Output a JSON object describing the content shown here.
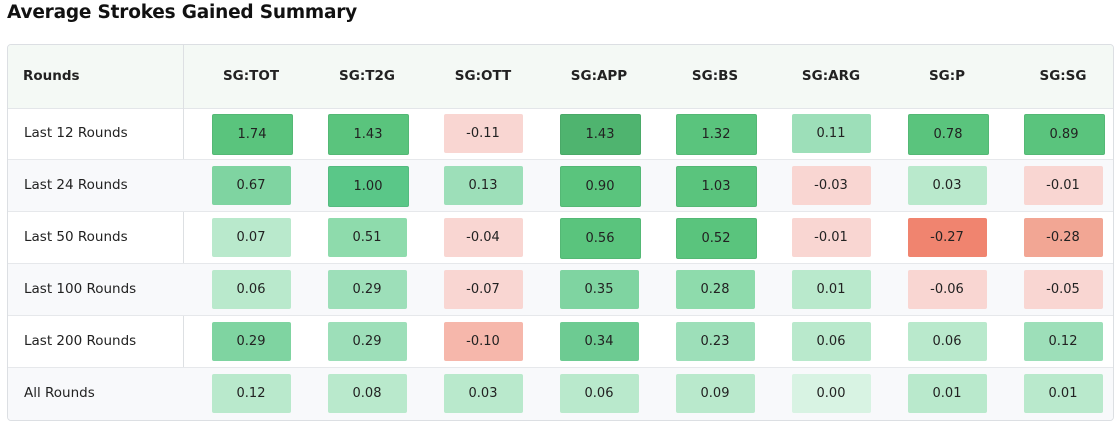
{
  "title": "Average Strokes Gained Summary",
  "table": {
    "rounds_header": "Rounds",
    "columns": [
      "SG:TOT",
      "SG:T2G",
      "SG:OTT",
      "SG:APP",
      "SG:BS",
      "SG:ARG",
      "SG:P",
      "SG:SG"
    ],
    "rows": [
      {
        "label": "Last 12 Rounds",
        "values": [
          "1.74",
          "1.43",
          "-0.11",
          "1.43",
          "1.32",
          "0.11",
          "0.78",
          "0.89"
        ]
      },
      {
        "label": "Last 24 Rounds",
        "values": [
          "0.67",
          "1.00",
          "0.13",
          "0.90",
          "1.03",
          "-0.03",
          "0.03",
          "-0.01"
        ]
      },
      {
        "label": "Last 50 Rounds",
        "values": [
          "0.07",
          "0.51",
          "-0.04",
          "0.56",
          "0.52",
          "-0.01",
          "-0.27",
          "-0.28"
        ]
      },
      {
        "label": "Last 100 Rounds",
        "values": [
          "0.06",
          "0.29",
          "-0.07",
          "0.35",
          "0.28",
          "0.01",
          "-0.06",
          "-0.05"
        ]
      },
      {
        "label": "Last 200 Rounds",
        "values": [
          "0.29",
          "0.29",
          "-0.10",
          "0.34",
          "0.23",
          "0.06",
          "0.06",
          "0.12"
        ]
      },
      {
        "label": "All Rounds",
        "values": [
          "0.12",
          "0.08",
          "0.03",
          "0.06",
          "0.09",
          "0.00",
          "0.01",
          "0.01"
        ]
      }
    ],
    "colors": [
      [
        "#5ac47d",
        "#5ac47d",
        "#f9d6d2",
        "#4fb46f",
        "#5ac47d",
        "#9ddfb9",
        "#5ac47d",
        "#5ac47d"
      ],
      [
        "#7fd4a1",
        "#5ac788",
        "#9ddfb9",
        "#5ac47d",
        "#5ac47d",
        "#f9d6d2",
        "#b9e9cc",
        "#f9d6d2"
      ],
      [
        "#b9e9cc",
        "#8edbac",
        "#f9d6d2",
        "#5ac47d",
        "#5ac47d",
        "#f9d6d2",
        "#f0846f",
        "#f2a694"
      ],
      [
        "#b9e9cc",
        "#9ddfb9",
        "#f9d6d2",
        "#7fd4a1",
        "#8edbac",
        "#b9e9cc",
        "#f9d6d2",
        "#f9d6d2"
      ],
      [
        "#7fd4a1",
        "#9ddfb9",
        "#f6b7ab",
        "#6dcb92",
        "#9ddfb9",
        "#b9e9cc",
        "#b9e9cc",
        "#9ddfb9"
      ],
      [
        "#b9e9cc",
        "#b9e9cc",
        "#b9e9cc",
        "#b9e9cc",
        "#b9e9cc",
        "#d8f3e3",
        "#b9e9cc",
        "#b9e9cc"
      ]
    ]
  }
}
